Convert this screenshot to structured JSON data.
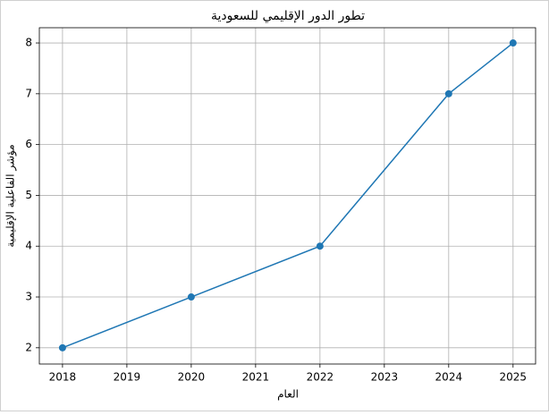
{
  "chart_data": {
    "type": "line",
    "title": "تطور الدور الإقليمي للسعودية",
    "x_label": "العام",
    "y_label": "مؤشر الفاعلية الإقليمية",
    "x": [
      2018,
      2020,
      2022,
      2024,
      2025
    ],
    "series": [
      {
        "color": "#1f77b4",
        "values": [
          2,
          3,
          4,
          7,
          8
        ]
      }
    ],
    "xlim": [
      2017.64,
      2025.35
    ],
    "ylim": [
      1.68,
      8.3
    ],
    "xticks": [
      2018,
      2019,
      2020,
      2021,
      2022,
      2023,
      2024,
      2025
    ],
    "yticks": [
      2,
      3,
      4,
      5,
      6,
      7,
      8
    ],
    "grid": true
  }
}
